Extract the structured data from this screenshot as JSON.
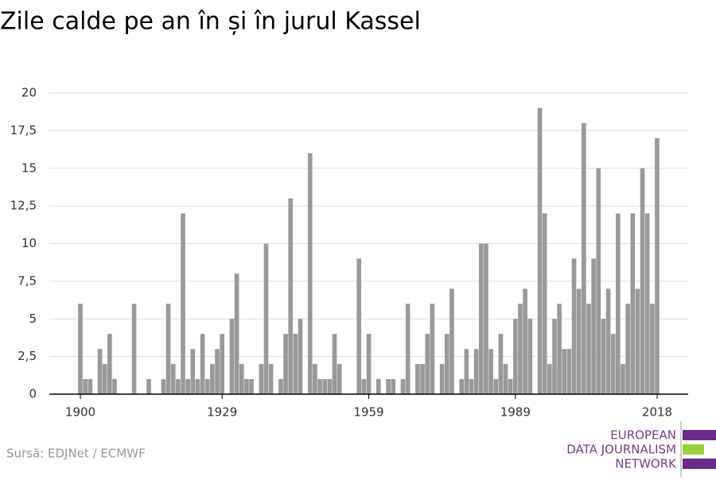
{
  "chart_data": {
    "type": "bar",
    "title": "Zile calde pe an în și în jurul Kassel",
    "source": "Sursă: EDJNet / ECMWF",
    "logo": [
      "EUROPEAN",
      "DATA JOURNALISM",
      "NETWORK"
    ],
    "color": "#999999",
    "grid": true,
    "x": [
      1900,
      1901,
      1902,
      1903,
      1904,
      1905,
      1906,
      1907,
      1908,
      1909,
      1910,
      1911,
      1912,
      1913,
      1914,
      1915,
      1916,
      1917,
      1918,
      1919,
      1920,
      1921,
      1922,
      1923,
      1924,
      1925,
      1926,
      1927,
      1928,
      1929,
      1930,
      1931,
      1932,
      1933,
      1934,
      1935,
      1936,
      1937,
      1938,
      1939,
      1940,
      1941,
      1942,
      1943,
      1944,
      1945,
      1946,
      1947,
      1948,
      1949,
      1950,
      1951,
      1952,
      1953,
      1954,
      1955,
      1956,
      1957,
      1958,
      1959,
      1960,
      1961,
      1962,
      1963,
      1964,
      1965,
      1966,
      1967,
      1968,
      1969,
      1970,
      1971,
      1972,
      1973,
      1974,
      1975,
      1976,
      1977,
      1978,
      1979,
      1980,
      1981,
      1982,
      1983,
      1984,
      1985,
      1986,
      1987,
      1988,
      1989,
      1990,
      1991,
      1992,
      1993,
      1994,
      1995,
      1996,
      1997,
      1998,
      1999,
      2000,
      2001,
      2002,
      2003,
      2004,
      2005,
      2006,
      2007,
      2008,
      2009,
      2010,
      2011,
      2012,
      2013,
      2014,
      2015,
      2016,
      2017,
      2018
    ],
    "values": [
      6,
      1,
      1,
      0,
      3,
      2,
      4,
      1,
      0,
      0,
      0,
      6,
      0,
      0,
      1,
      0,
      0,
      1,
      6,
      2,
      1,
      12,
      1,
      3,
      1,
      4,
      1,
      2,
      3,
      4,
      0,
      5,
      8,
      2,
      1,
      1,
      0,
      2,
      10,
      2,
      0,
      1,
      4,
      13,
      4,
      5,
      0,
      16,
      2,
      1,
      1,
      1,
      4,
      2,
      0,
      0,
      0,
      9,
      1,
      4,
      0,
      1,
      0,
      1,
      1,
      0,
      1,
      6,
      0,
      2,
      2,
      4,
      6,
      0,
      2,
      4,
      7,
      0,
      1,
      3,
      1,
      3,
      10,
      10,
      3,
      1,
      4,
      2,
      1,
      5,
      6,
      7,
      5,
      0,
      19,
      12,
      2,
      5,
      6,
      3,
      3,
      9,
      7,
      18,
      6,
      9,
      15,
      5,
      7,
      4,
      12,
      2,
      6,
      12,
      7,
      15,
      12,
      6,
      17
    ],
    "xticks": [
      1900,
      1929,
      1959,
      1989,
      2018
    ],
    "ylim": [
      0,
      20
    ],
    "yticks": [
      0,
      {
        "value": 2.5,
        "label": "2,5"
      },
      5,
      {
        "value": 7.5,
        "label": "7,5"
      },
      10,
      {
        "value": 12.5,
        "label": "12,5"
      },
      15,
      {
        "value": 17.5,
        "label": "17,5"
      },
      20
    ]
  }
}
